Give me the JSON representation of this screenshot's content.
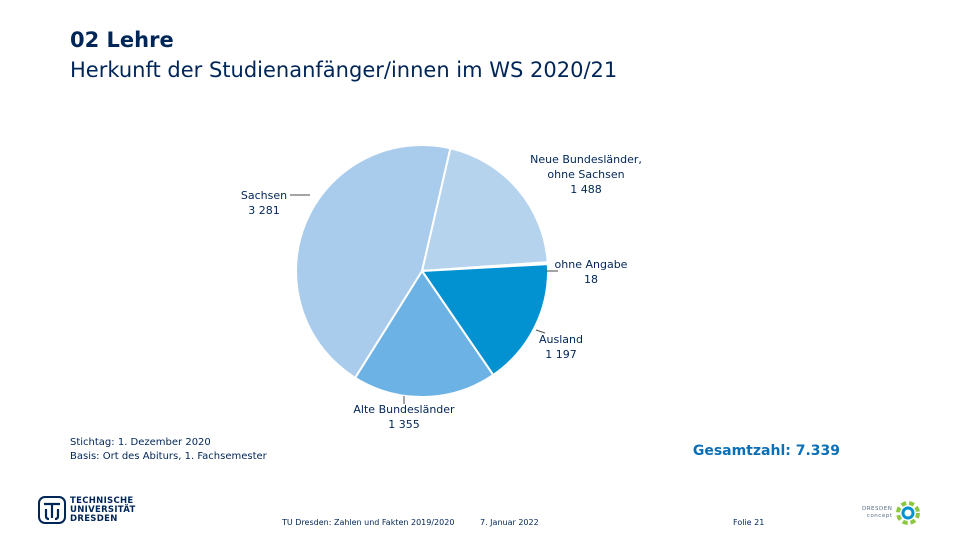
{
  "header": {
    "section": "02 Lehre",
    "title": "Herkunft der Studienanfänger/innen im WS 2020/21"
  },
  "chart_data": {
    "type": "pie",
    "title": "Herkunft der Studienanfänger/innen im WS 2020/21",
    "slices": [
      {
        "label_lines": [
          "Neue Bundesländer,",
          "ohne Sachsen"
        ],
        "value_text": "1 488",
        "value": 1488,
        "color": "#b6d3ee"
      },
      {
        "label_lines": [
          "ohne Angabe"
        ],
        "value_text": "18",
        "value": 18,
        "color": "#1f4e8c"
      },
      {
        "label_lines": [
          "Ausland"
        ],
        "value_text": "1 197",
        "value": 1197,
        "color": "#0292d2"
      },
      {
        "label_lines": [
          "Alte Bundesländer"
        ],
        "value_text": "1 355",
        "value": 1355,
        "color": "#6cb2e4"
      },
      {
        "label_lines": [
          "Sachsen"
        ],
        "value_text": "3 281",
        "value": 3281,
        "color": "#a9ccec"
      }
    ],
    "total_label": "Gesamtzahl: 7.339"
  },
  "footnote": {
    "line1": "Stichtag: 1. Dezember 2020",
    "line2": "Basis: Ort des Abiturs, 1. Fachsemester"
  },
  "footer": {
    "source": "TU Dresden: Zahlen und Fakten 2019/2020",
    "date": "7. Januar 2022",
    "page": "Folie 21"
  },
  "logos": {
    "tud_lines": [
      "TECHNISCHE",
      "UNIVERSITÄT",
      "DRESDEN"
    ],
    "dresden_concept_lines": [
      "DRESDEN",
      "concept"
    ]
  }
}
